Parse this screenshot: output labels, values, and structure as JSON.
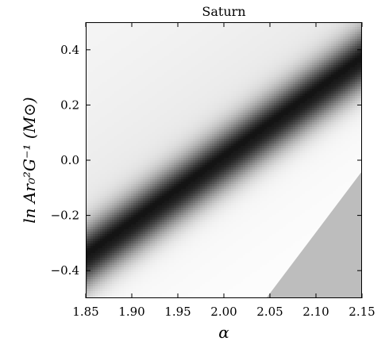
{
  "chart_data": {
    "type": "heatmap",
    "title": "Saturn",
    "xlabel": "α",
    "ylabel": "ln Ar₀²G⁻¹ (M⊙)",
    "xlim": [
      1.85,
      2.15
    ],
    "ylim": [
      -0.5,
      0.5
    ],
    "x_ticks": [
      "1.85",
      "1.90",
      "1.95",
      "2.00",
      "2.05",
      "2.10",
      "2.15"
    ],
    "y_ticks": [
      "−0.4",
      "−0.2",
      "0.0",
      "0.2",
      "0.4"
    ],
    "x_tick_values": [
      1.85,
      1.9,
      1.95,
      2.0,
      2.05,
      2.1,
      2.15
    ],
    "y_tick_values": [
      -0.4,
      -0.2,
      0.0,
      0.2,
      0.4
    ],
    "ridge_line": {
      "x": [
        1.85,
        2.15
      ],
      "y": [
        -0.355,
        0.36
      ]
    },
    "excluded_region": {
      "x": [
        2.046,
        2.15,
        2.15
      ],
      "y": [
        -0.5,
        -0.04,
        -0.5
      ],
      "color": "#bdbdbd"
    },
    "colormap": "gray_r",
    "grid": false,
    "legend": "none"
  }
}
